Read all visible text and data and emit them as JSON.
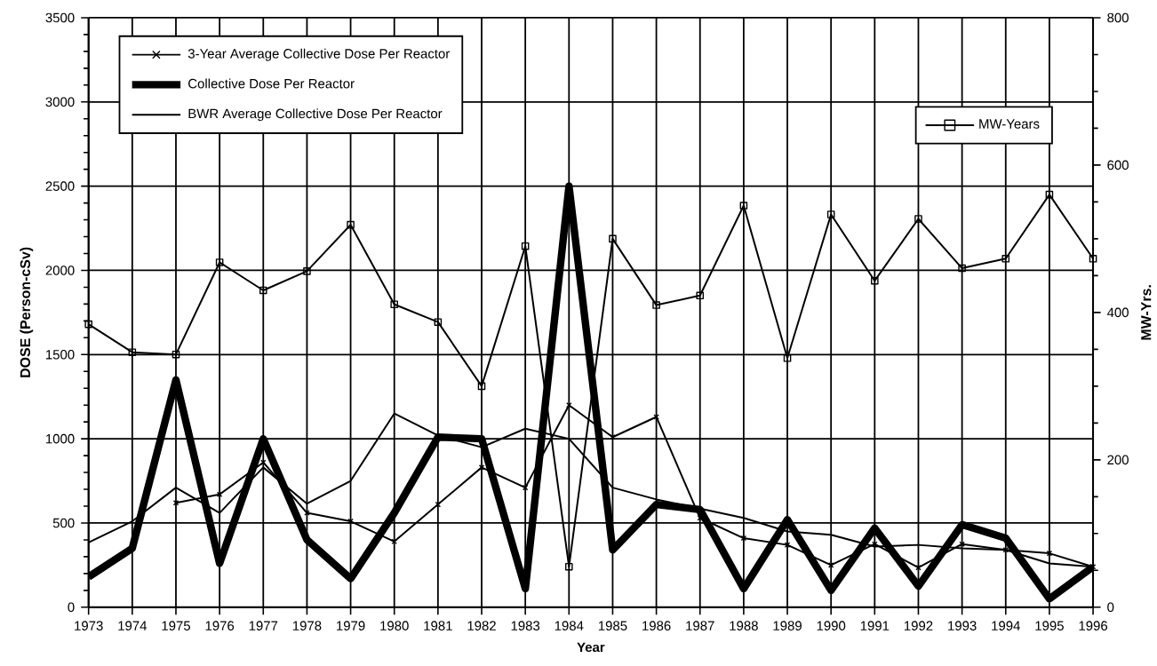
{
  "chart_data": {
    "type": "line",
    "xlabel": "Year",
    "ylabel": "DOSE (Person-cSv)",
    "y2label": "MW-Yrs.",
    "x": [
      1973,
      1974,
      1975,
      1976,
      1977,
      1978,
      1979,
      1980,
      1981,
      1982,
      1983,
      1984,
      1985,
      1986,
      1987,
      1988,
      1989,
      1990,
      1991,
      1992,
      1993,
      1994,
      1995,
      1996
    ],
    "xlim": [
      1973,
      1996
    ],
    "xticks": [
      1973,
      1974,
      1975,
      1976,
      1977,
      1978,
      1979,
      1980,
      1981,
      1982,
      1983,
      1984,
      1985,
      1986,
      1987,
      1988,
      1989,
      1990,
      1991,
      1992,
      1993,
      1994,
      1995,
      1996
    ],
    "ylim": [
      0,
      3500
    ],
    "yticks": [
      0,
      500,
      1000,
      1500,
      2000,
      2500,
      3000,
      3500
    ],
    "y2lim": [
      0,
      800
    ],
    "y2ticks": [
      0,
      200,
      400,
      600,
      800
    ],
    "grid": true,
    "legend": "top left",
    "series": [
      {
        "name": "3-Year Average Collective Dose Per Reactor",
        "color": "#000000",
        "marker": "cross",
        "values": [
          null,
          null,
          620,
          670,
          860,
          560,
          510,
          390,
          610,
          830,
          710,
          1200,
          1010,
          1130,
          530,
          410,
          370,
          250,
          375,
          235,
          375,
          340,
          320,
          240
        ]
      },
      {
        "name": "Collective Dose Per Reactor",
        "color": "#000000",
        "marker": "none",
        "values": [
          180,
          350,
          1350,
          260,
          1000,
          400,
          170,
          560,
          1010,
          1000,
          110,
          2500,
          340,
          610,
          580,
          110,
          520,
          100,
          470,
          125,
          490,
          410,
          50,
          240
        ]
      },
      {
        "name": "BWR Average Collective Dose Per Reactor",
        "color": "#000000",
        "marker": "none",
        "values": [
          385,
          510,
          710,
          560,
          830,
          615,
          750,
          1150,
          1020,
          950,
          1060,
          1000,
          710,
          640,
          585,
          530,
          450,
          430,
          360,
          370,
          350,
          340,
          260,
          240
        ]
      },
      {
        "name": "MW-Years",
        "color": "#000000",
        "marker": "square",
        "axis": "y2",
        "values": [
          384,
          346,
          343,
          468,
          430,
          456,
          519,
          411,
          387,
          300,
          490,
          55,
          500,
          410,
          423,
          545,
          338,
          533,
          443,
          527,
          460,
          473,
          560,
          473
        ]
      }
    ]
  }
}
